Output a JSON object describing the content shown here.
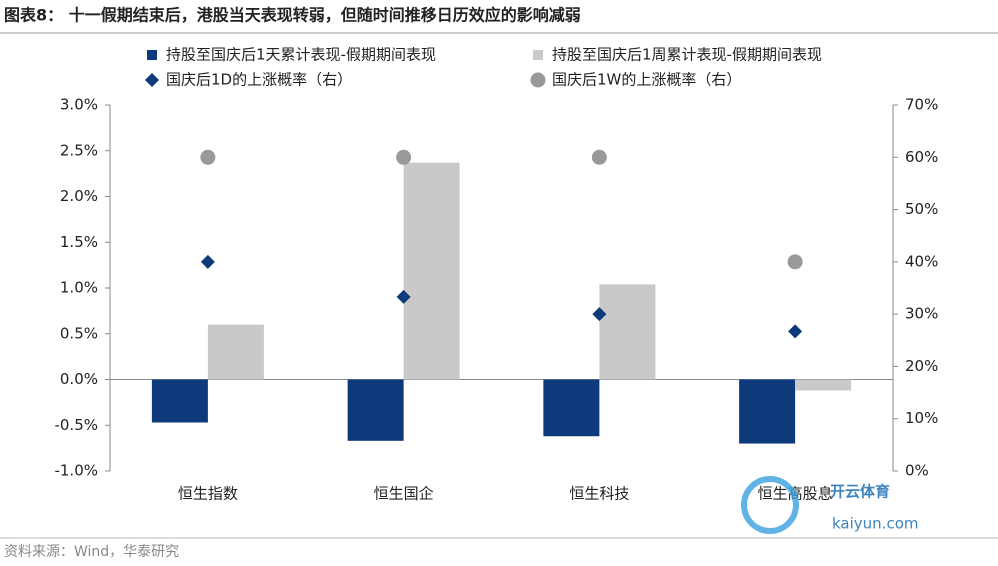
{
  "chart_data": {
    "type": "bar",
    "title": "图表8：  十一假期结束后，港股当天表现转弱，但随时间推移日历效应的影响减弱",
    "categories": [
      "恒生指数",
      "恒生国企",
      "恒生科技",
      "恒生高股息"
    ],
    "series": [
      {
        "name": "持股至国庆后1天累计表现-假期期间表现",
        "type": "bar",
        "marker": "square",
        "color": "#0c3a7a",
        "values": [
          -0.47,
          -0.67,
          -0.62,
          -0.7
        ]
      },
      {
        "name": "持股至国庆后1周累计表现-假期期间表现",
        "type": "bar",
        "marker": "square",
        "color": "#c9c9c9",
        "values": [
          0.6,
          2.37,
          1.04,
          -0.12
        ]
      },
      {
        "name": "国庆后1D的上涨概率（右）",
        "type": "scatter",
        "marker": "diamond",
        "axis": "y2",
        "color": "#0c3a7a",
        "values": [
          40,
          33.3,
          30,
          26.7
        ]
      },
      {
        "name": "国庆后1W的上涨概率（右）",
        "type": "scatter",
        "marker": "circle",
        "axis": "y2",
        "color": "#999999",
        "values": [
          60,
          60,
          60,
          40
        ]
      }
    ],
    "ylim": [
      -1,
      3
    ],
    "yticks": [
      {
        "value": -1,
        "label": "-1.0%"
      },
      {
        "value": -0.5,
        "label": "-0.5%"
      },
      {
        "value": 0,
        "label": "0.0%"
      },
      {
        "value": 0.5,
        "label": "0.5%"
      },
      {
        "value": 1,
        "label": "1.0%"
      },
      {
        "value": 1.5,
        "label": "1.5%"
      },
      {
        "value": 2,
        "label": "2.0%"
      },
      {
        "value": 2.5,
        "label": "2.5%"
      },
      {
        "value": 3,
        "label": "3.0%"
      }
    ],
    "y2lim": [
      0,
      70
    ],
    "y2ticks": [
      {
        "value": 0,
        "label": "0%"
      },
      {
        "value": 10,
        "label": "10%"
      },
      {
        "value": 20,
        "label": "20%"
      },
      {
        "value": 30,
        "label": "30%"
      },
      {
        "value": 40,
        "label": "40%"
      },
      {
        "value": 50,
        "label": "50%"
      },
      {
        "value": 60,
        "label": "60%"
      },
      {
        "value": 70,
        "label": "70%"
      }
    ],
    "grid": false,
    "source": "资料来源：Wind，华泰研究"
  },
  "watermark": {
    "brand": "开云体育",
    "site": "kaiyun.com"
  }
}
